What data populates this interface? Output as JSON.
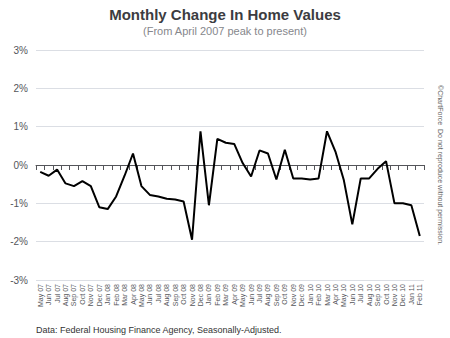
{
  "chart_data": {
    "type": "line",
    "title": "Monthly Change In Home Values",
    "subtitle": "(From April 2007 peak to present)",
    "annotations": [
      "Data: Federal Housing Finance Agency, Seasonally-Adjusted.",
      "©ChartForce  Do not reproduce without permission."
    ],
    "categories": [
      "May 07",
      "Jun 07",
      "Jul 07",
      "Aug 07",
      "Sep 07",
      "Oct 07",
      "Nov 07",
      "Dec 07",
      "Jan 08",
      "Feb 08",
      "Mar 08",
      "Apr 08",
      "May 08",
      "Jun 08",
      "Jul 08",
      "Aug 08",
      "Sep 08",
      "Oct 08",
      "Nov 08",
      "Dec 08",
      "Jan 09",
      "Feb 09",
      "Mar 09",
      "Apr 09",
      "May 09",
      "Jun 09",
      "Jul 09",
      "Aug 09",
      "Sep 09",
      "Oct 09",
      "Nov 09",
      "Dec 09",
      "Jan 10",
      "Feb 10",
      "Mar 10",
      "Apr 10",
      "May 10",
      "Jun 10",
      "Jul 10",
      "Aug 10",
      "Sep 10",
      "Oct 10",
      "Nov 10",
      "Dec 10",
      "Jan 11",
      "Feb 11"
    ],
    "values": [
      -0.18,
      -0.28,
      -0.12,
      -0.48,
      -0.55,
      -0.42,
      -0.55,
      -1.1,
      -1.15,
      -0.82,
      -0.28,
      0.3,
      -0.55,
      -0.78,
      -0.82,
      -0.88,
      -0.9,
      -0.95,
      -1.95,
      0.88,
      -1.05,
      0.68,
      0.58,
      0.55,
      0.05,
      -0.3,
      0.38,
      0.3,
      -0.38,
      0.4,
      -0.35,
      -0.35,
      -0.38,
      -0.35,
      0.88,
      0.35,
      -0.4,
      -1.55,
      -0.35,
      -0.35,
      -0.1,
      0.1,
      -1.0,
      -1.0,
      -1.05,
      -1.85
    ],
    "color": "#000000",
    "ylim": [
      -3,
      3
    ],
    "yticks": [
      {
        "value": -3,
        "label": "-3%"
      },
      {
        "value": -2,
        "label": "-2%"
      },
      {
        "value": -1,
        "label": "-1%"
      },
      {
        "value": 0,
        "label": "0%"
      },
      {
        "value": 1,
        "label": "1%"
      },
      {
        "value": 2,
        "label": "2%"
      },
      {
        "value": 3,
        "label": "3%"
      }
    ],
    "grid": true
  }
}
